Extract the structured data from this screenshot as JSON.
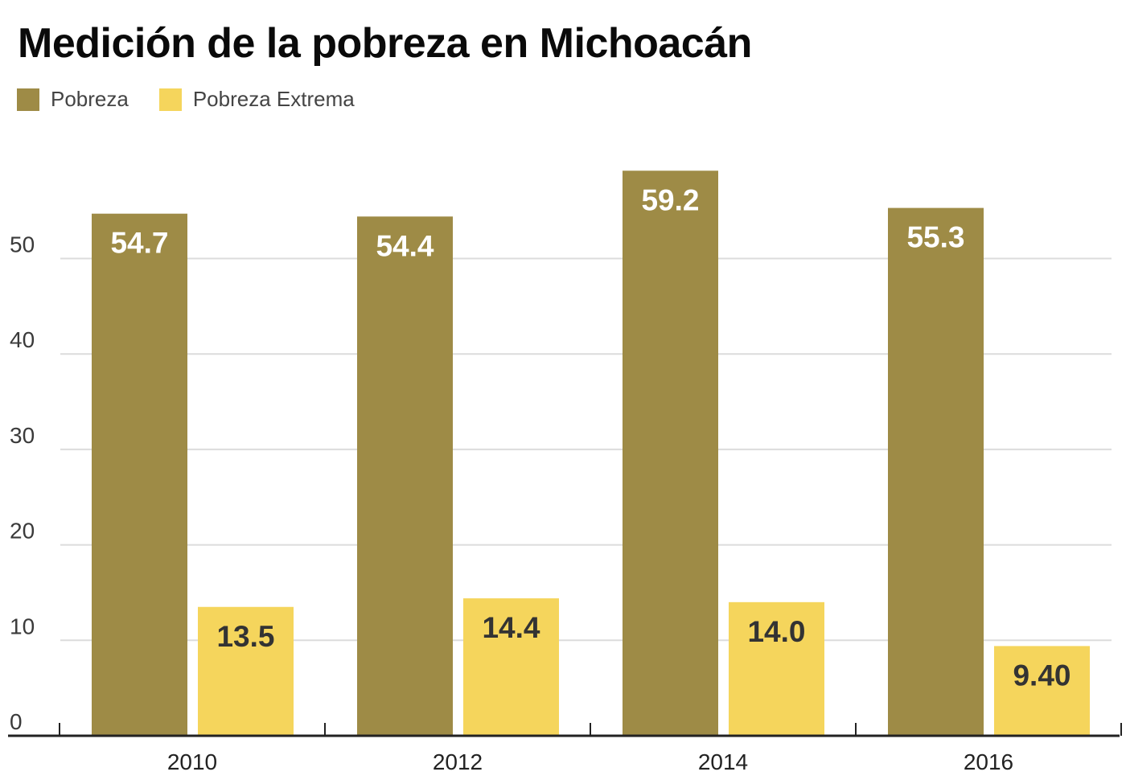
{
  "chart_data": {
    "type": "bar",
    "title": "Medición de la pobreza en Michoacán",
    "xlabel": "",
    "ylabel": "",
    "categories": [
      "2010",
      "2012",
      "2014",
      "2016"
    ],
    "series": [
      {
        "name": "Pobreza",
        "color": "#9e8b46",
        "values": [
          54.7,
          54.4,
          59.2,
          55.3
        ],
        "labels": [
          "54.7",
          "54.4",
          "59.2",
          "55.3"
        ],
        "label_color": "#ffffff"
      },
      {
        "name": "Pobreza Extrema",
        "color": "#f5d55c",
        "values": [
          13.5,
          14.4,
          14.0,
          9.4
        ],
        "labels": [
          "13.5",
          "14.4",
          "14.0",
          "9.40"
        ],
        "label_color": "#333333"
      }
    ],
    "yticks": [
      0,
      10,
      20,
      30,
      40,
      50
    ],
    "ylim": [
      0,
      60
    ],
    "grid": true,
    "legend": "top-left"
  }
}
